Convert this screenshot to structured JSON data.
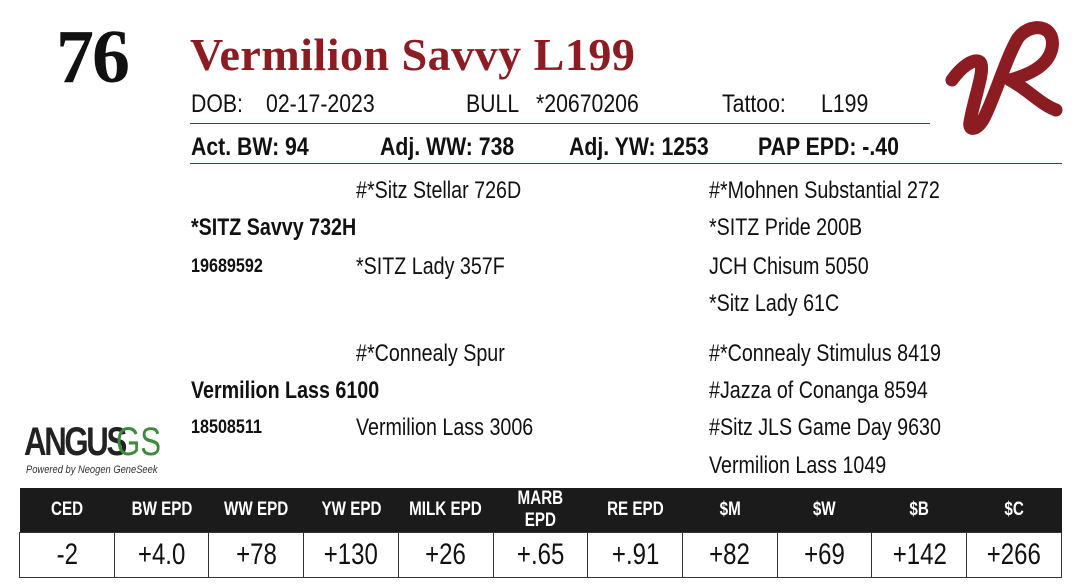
{
  "lot_number": "76",
  "animal_name": "Vermilion Savvy L199",
  "info": {
    "dob_label": "DOB:",
    "dob": "02-17-2023",
    "sex": "BULL",
    "registration": "*20670206",
    "tattoo_label": "Tattoo:",
    "tattoo": "L199"
  },
  "performance": {
    "act_bw": "Act. BW: 94",
    "adj_ww": "Adj. WW: 738",
    "adj_yw": "Adj. YW: 1253",
    "pap_epd": "PAP EPD: -.40"
  },
  "pedigree": {
    "sire": "*SITZ Savvy 732H",
    "sire_reg": "19689592",
    "sire_sire": "#*Sitz Stellar 726D",
    "sire_dam": "*SITZ Lady 357F",
    "sss": "#*Mohnen Substantial 272",
    "ssd": "*SITZ Pride 200B",
    "sds": "JCH Chisum 5050",
    "sdd": "*Sitz Lady 61C",
    "dam": "Vermilion Lass 6100",
    "dam_reg": "18508511",
    "dam_sire": "#*Connealy Spur",
    "dam_dam": "Vermilion Lass 3006",
    "dss": "#*Connealy Stimulus 8419",
    "dsd": "#Jazza of Conanga 8594",
    "dds": "#Sitz JLS Game Day 9630",
    "ddd": "Vermilion Lass 1049"
  },
  "logos": {
    "angus_text": "ANGUS",
    "angus_gs": "GS",
    "angus_sub": "Powered by Neogen GeneSeek",
    "vr_color": "#8a1c22",
    "gs_color": "#3d8b3a"
  },
  "epd_table": {
    "headers": [
      "CED",
      "BW EPD",
      "WW EPD",
      "YW EPD",
      "MILK EPD",
      "MARB EPD",
      "RE EPD",
      "$M",
      "$W",
      "$B",
      "$C"
    ],
    "values": [
      "-2",
      "+4.0",
      "+78",
      "+130",
      "+26",
      "+.65",
      "+.91",
      "+82",
      "+69",
      "+142",
      "+266"
    ]
  }
}
